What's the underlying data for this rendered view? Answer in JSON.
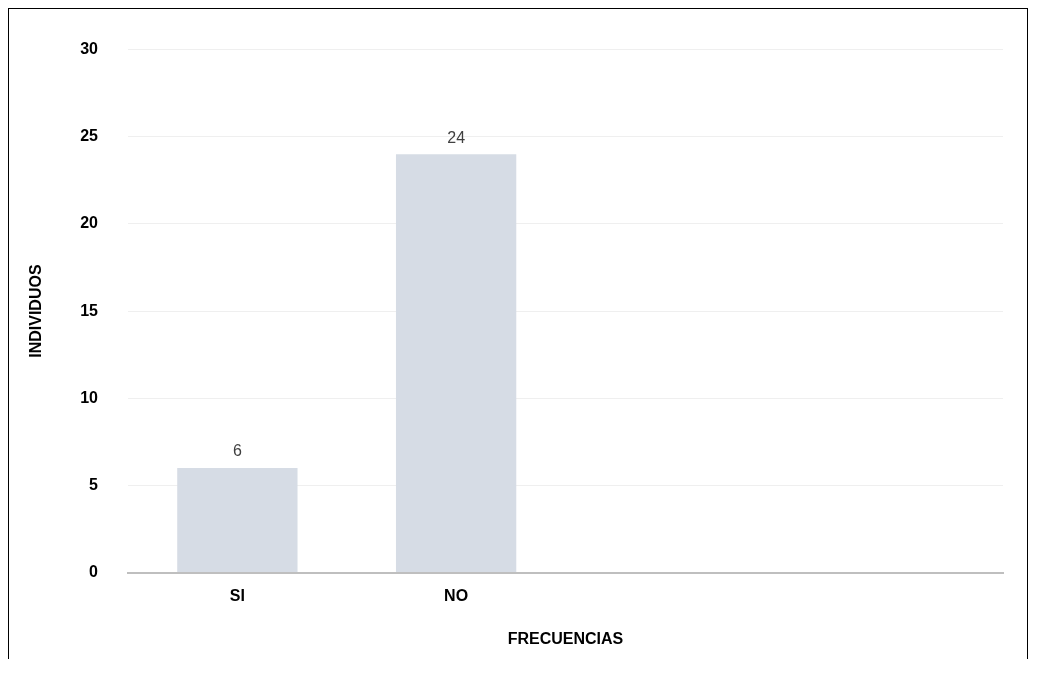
{
  "chart_data": {
    "type": "bar",
    "xlabel": "FRECUENCIAS",
    "ylabel": "INDIVIDUOS",
    "categories": [
      "SI",
      "NO",
      null,
      null
    ],
    "values": [
      6,
      24,
      null,
      null
    ],
    "color": "#d6dce5",
    "ylim": [
      0,
      30
    ],
    "yticks": [
      0,
      5,
      10,
      15,
      20,
      25,
      30
    ],
    "grid": "y",
    "data_labels": true,
    "legend": false
  }
}
